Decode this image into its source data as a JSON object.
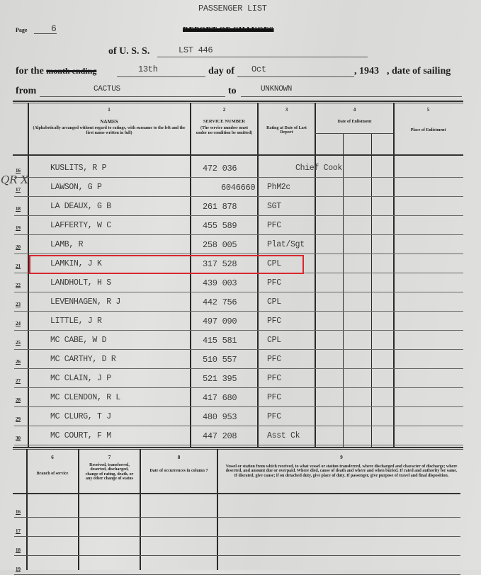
{
  "form": {
    "title": "PASSENGER LIST",
    "page_label": "Page",
    "page_number": "6",
    "struck_title": "REPORT OF CHANGES",
    "uss_label": "of U. S. S.",
    "ship": "LST 446",
    "for_the_label": "for the",
    "struck_month_ending": "month ending",
    "day": "13th",
    "day_of_label": "day of",
    "month": "Oct",
    "year": ", 1943",
    "date_of_sailing_label": ", date of sailing",
    "from_label": "from",
    "from_value": "CACTUS",
    "to_label": "to",
    "to_value": "UNKNOWN"
  },
  "columns_top": [
    {
      "num": "1",
      "title": "NAMES",
      "note": "(Alphabetically arranged without regard to ratings, with surname to the left and the first name written in full)"
    },
    {
      "num": "2",
      "title": "SERVICE NUMBER",
      "note": "(The service number must under no condition be omitted)"
    },
    {
      "num": "3",
      "title": "Rating at Date of Last Report",
      "note": ""
    },
    {
      "num": "4",
      "title": "Date of Enlistment",
      "note": ""
    },
    {
      "num": "5",
      "title": "Place of Enlistment",
      "note": ""
    }
  ],
  "rows": [
    {
      "n": "16",
      "name": "KUSLITS, R P",
      "service": "472 036",
      "rating": "Chief Cook"
    },
    {
      "n": "17",
      "name": "LAWSON, G P",
      "service": "6046660",
      "rating": "PhM2c"
    },
    {
      "n": "18",
      "name": "LA DEAUX, G B",
      "service": "261 878",
      "rating": "SGT"
    },
    {
      "n": "19",
      "name": "LAFFERTY, W C",
      "service": "455 589",
      "rating": "PFC"
    },
    {
      "n": "20",
      "name": "LAMB, R",
      "service": "258 005",
      "rating": "Plat/Sgt"
    },
    {
      "n": "21",
      "name": "LAMKIN, J K",
      "service": "317 528",
      "rating": "CPL"
    },
    {
      "n": "22",
      "name": "LANDHOLT, H S",
      "service": "439 003",
      "rating": "PFC"
    },
    {
      "n": "23",
      "name": "LEVENHAGEN, R J",
      "service": "442 756",
      "rating": "CPL"
    },
    {
      "n": "24",
      "name": "LITTLE, J R",
      "service": "497 090",
      "rating": "PFC"
    },
    {
      "n": "25",
      "name": "MC CABE, W D",
      "service": "415 581",
      "rating": "CPL"
    },
    {
      "n": "26",
      "name": "MC CARTHY, D R",
      "service": "510 557",
      "rating": "PFC"
    },
    {
      "n": "27",
      "name": "MC CLAIN, J P",
      "service": "521 395",
      "rating": "PFC"
    },
    {
      "n": "28",
      "name": "MC CLENDON, R L",
      "service": "417 680",
      "rating": "PFC"
    },
    {
      "n": "29",
      "name": "MC CLURG, T J",
      "service": "480 953",
      "rating": "PFC"
    },
    {
      "n": "30",
      "name": "MC COURT, F M",
      "service": "447 208",
      "rating": "Asst Ck"
    }
  ],
  "handwritten_mark": "QR X",
  "highlight": {
    "row": "21",
    "color": "#d9272e"
  },
  "columns_bottom": [
    {
      "num": "6",
      "title": "Branch of service"
    },
    {
      "num": "7",
      "title": "Received, transferred, deserted, discharged, change of rating, death, or any other change of status"
    },
    {
      "num": "8",
      "title": "Date of occurrences in column 7"
    },
    {
      "num": "9",
      "title": "Vessel or station from which received, to what vessel or station transferred, where discharged and character of discharge; where deserted, and amount due or overpaid. Where died, cause of death and where and when buried. If rated and authority for same. If disrated, give cause; if on detached duty, give place of duty. If passenger, give purpose of travel and final disposition."
    }
  ],
  "bottom_rows": [
    "16",
    "17",
    "18",
    "19"
  ]
}
